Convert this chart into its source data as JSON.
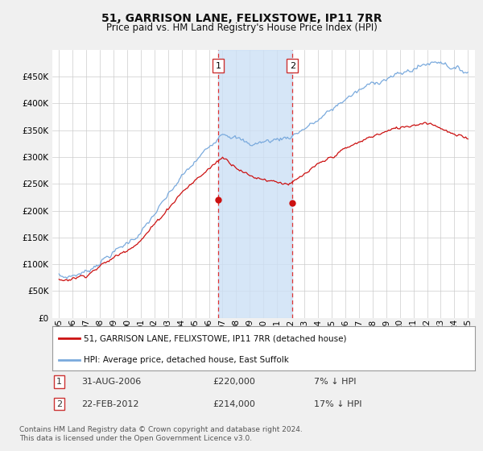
{
  "title": "51, GARRISON LANE, FELIXSTOWE, IP11 7RR",
  "subtitle": "Price paid vs. HM Land Registry's House Price Index (HPI)",
  "hpi_color": "#7aaadd",
  "price_color": "#cc1111",
  "background_color": "#f0f0f0",
  "plot_bg": "#ffffff",
  "grid_color": "#cccccc",
  "ylim": [
    0,
    500000
  ],
  "yticks": [
    0,
    50000,
    100000,
    150000,
    200000,
    250000,
    300000,
    350000,
    400000,
    450000
  ],
  "xlim_start": 1994.5,
  "xlim_end": 2025.5,
  "transaction1": {
    "date_x": 2006.67,
    "price": 220000,
    "label": "1",
    "date_str": "31-AUG-2006",
    "pct": "7%"
  },
  "transaction2": {
    "date_x": 2012.12,
    "price": 214000,
    "label": "2",
    "date_str": "22-FEB-2012",
    "pct": "17%"
  },
  "legend_line1": "51, GARRISON LANE, FELIXSTOWE, IP11 7RR (detached house)",
  "legend_line2": "HPI: Average price, detached house, East Suffolk",
  "footer": "Contains HM Land Registry data © Crown copyright and database right 2024.\nThis data is licensed under the Open Government Licence v3.0."
}
